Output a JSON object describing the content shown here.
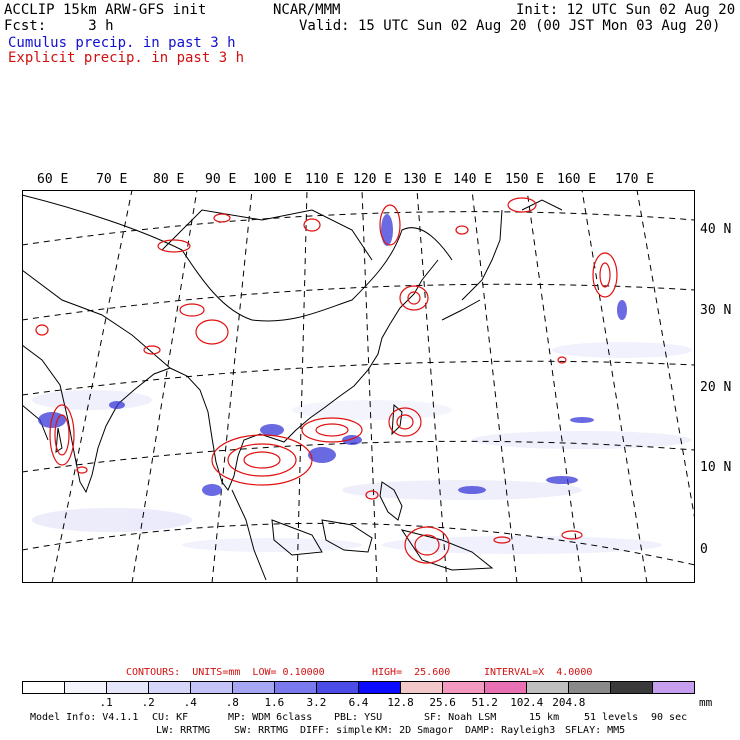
{
  "header": {
    "left_line1": "ACCLIP 15km ARW-GFS init",
    "left_line2": "Fcst:     3 h",
    "center": "NCAR/MMM",
    "right_line1": "Init: 12 UTC Sun 02 Aug 20",
    "right_line2": "Valid: 15 UTC Sun 02 Aug 20 (00 JST Mon 03 Aug 20)",
    "cumulus_label": "Cumulus precip. in past 3 h",
    "explicit_label": "Explicit precip. in past 3 h"
  },
  "map": {
    "longitude_labels": [
      "60 E",
      "70 E",
      "80 E",
      "90 E",
      "100 E",
      "110 E",
      "120 E",
      "130 E",
      "140 E",
      "150 E",
      "160 E",
      "170 E"
    ],
    "latitude_labels": [
      "40 N",
      "30 N",
      "20 N",
      "10 N",
      "0"
    ],
    "contour_color": "#e01010",
    "cumulus_color": "#3030d8"
  },
  "contours": {
    "units": "CONTOURS:  UNITS=mm  LOW= 0.10000",
    "high": "HIGH=  25.600",
    "interval": "INTERVAL=X  4.0000"
  },
  "colorbar": {
    "colors": [
      "#ffffff",
      "#f4f4fd",
      "#e6e6fb",
      "#d6d6fb",
      "#c4c4f8",
      "#a6a6f2",
      "#7a7aee",
      "#4c4ce6",
      "#0b0bff",
      "#f2c8c8",
      "#f49ac0",
      "#ea70b4",
      "#bfbfbf",
      "#8a8a8a",
      "#3a3a3a",
      "#c6a0ee"
    ],
    "ticks": [
      ".1",
      ".2",
      ".4",
      ".8",
      "1.6",
      "3.2",
      "6.4",
      "12.8",
      "25.6",
      "51.2",
      "102.4",
      "204.8"
    ],
    "unit": "mm"
  },
  "model_info": {
    "line1": [
      "Model Info: V4.1.1",
      "CU: KF",
      "MP: WDM 6class",
      "PBL: YSU",
      "SF: Noah LSM",
      "15 km",
      "51 levels",
      "90 sec"
    ],
    "line2": [
      "LW: RRTMG",
      "SW: RRTMG",
      "DIFF: simple",
      "KM: 2D Smagor",
      "DAMP: Rayleigh3",
      "SFLAY: MM5"
    ]
  }
}
